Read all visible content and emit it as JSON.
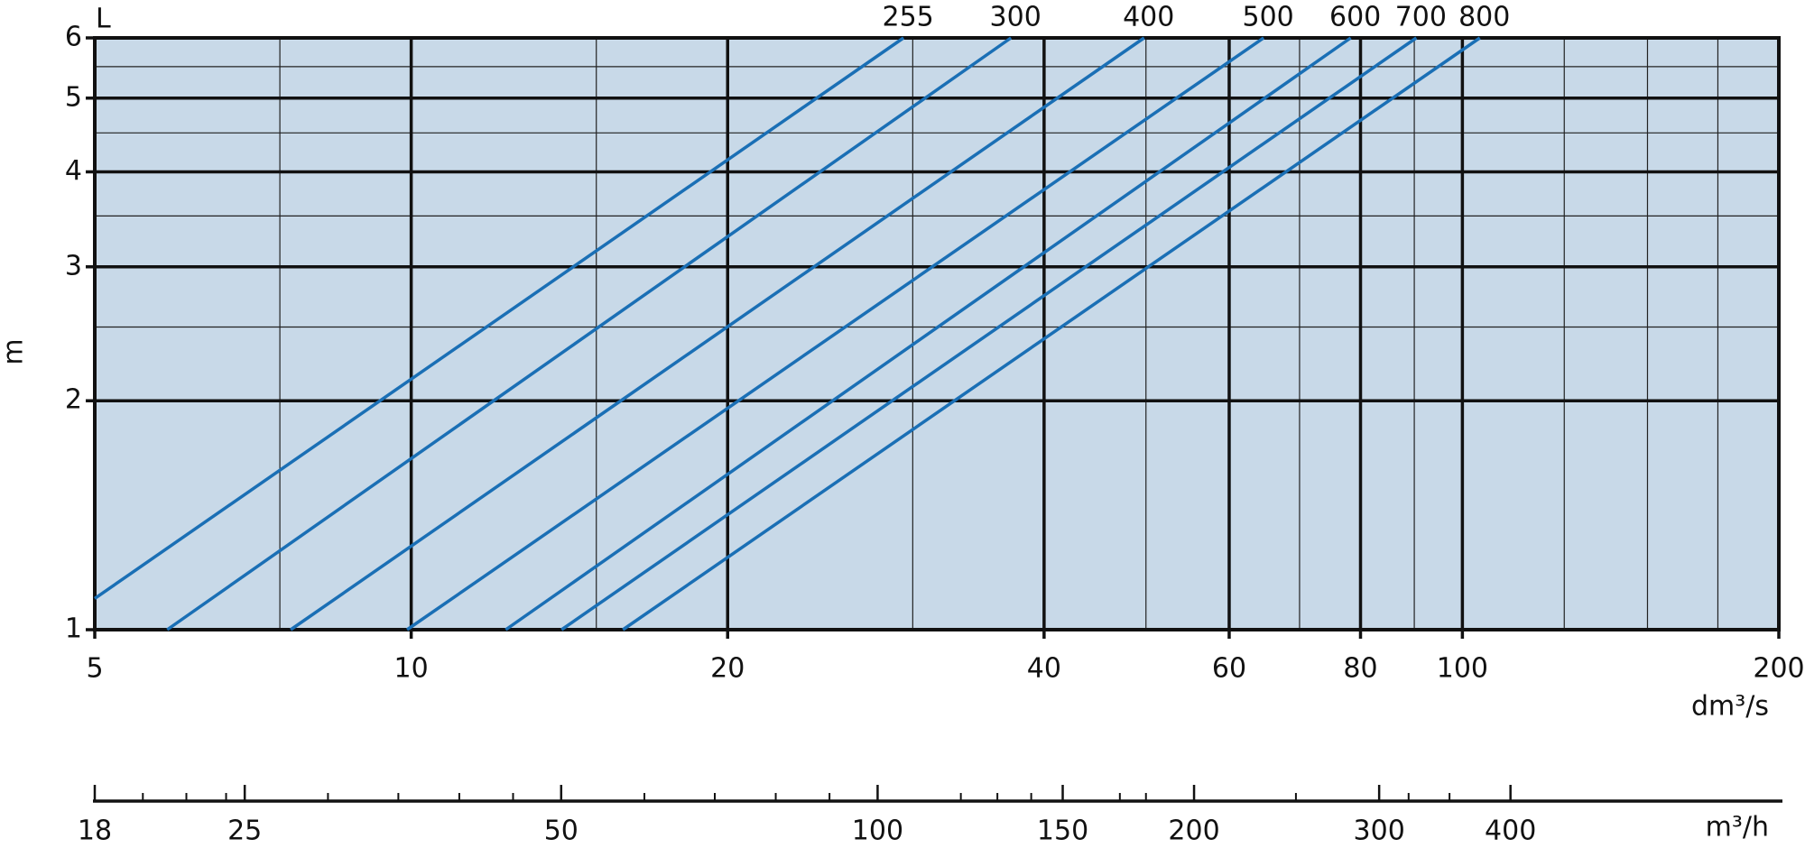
{
  "chart_data": {
    "type": "line",
    "title": "L",
    "ylabel": "m",
    "xlabel": "dm³/s",
    "x2label": "m³/h",
    "log_x": true,
    "log_y": true,
    "grid": true,
    "background": "#c8d9e8",
    "xlim": [
      5,
      200
    ],
    "ylim": [
      1,
      6
    ],
    "xticks": [
      5,
      10,
      20,
      40,
      60,
      80,
      100,
      200
    ],
    "x_minor_grid": [
      7.5,
      15,
      30,
      50,
      70,
      90,
      125,
      150,
      175
    ],
    "yticks": [
      1,
      2,
      3,
      4,
      5,
      6
    ],
    "y_minor_grid": [
      2.5,
      3.5,
      4.5,
      5.5
    ],
    "x2lim": [
      18,
      720
    ],
    "x2ticks": [
      18,
      25,
      50,
      100,
      150,
      200,
      300,
      400
    ],
    "x2_minor_ticks": [
      20,
      22,
      24,
      30,
      35,
      40,
      45,
      60,
      70,
      80,
      90,
      120,
      130,
      140,
      170,
      180,
      250,
      320,
      350
    ],
    "series": [
      {
        "name": "255",
        "color": "#1a6fb5",
        "x": [
          5,
          29.4
        ],
        "values": [
          1.099,
          6
        ]
      },
      {
        "name": "300",
        "color": "#1a6fb5",
        "x": [
          5.86,
          37.2
        ],
        "values": [
          1,
          6
        ]
      },
      {
        "name": "400",
        "color": "#1a6fb5",
        "x": [
          7.68,
          49.8
        ],
        "values": [
          1,
          6
        ]
      },
      {
        "name": "500",
        "color": "#1a6fb5",
        "x": [
          9.91,
          64.7
        ],
        "values": [
          1,
          6
        ]
      },
      {
        "name": "600",
        "color": "#1a6fb5",
        "x": [
          12.3,
          78.3
        ],
        "values": [
          1,
          6
        ]
      },
      {
        "name": "700",
        "color": "#1a6fb5",
        "x": [
          13.9,
          90.4
        ],
        "values": [
          1,
          6
        ]
      },
      {
        "name": "800",
        "color": "#1a6fb5",
        "x": [
          15.9,
          103.9
        ],
        "values": [
          1,
          6
        ]
      }
    ]
  }
}
